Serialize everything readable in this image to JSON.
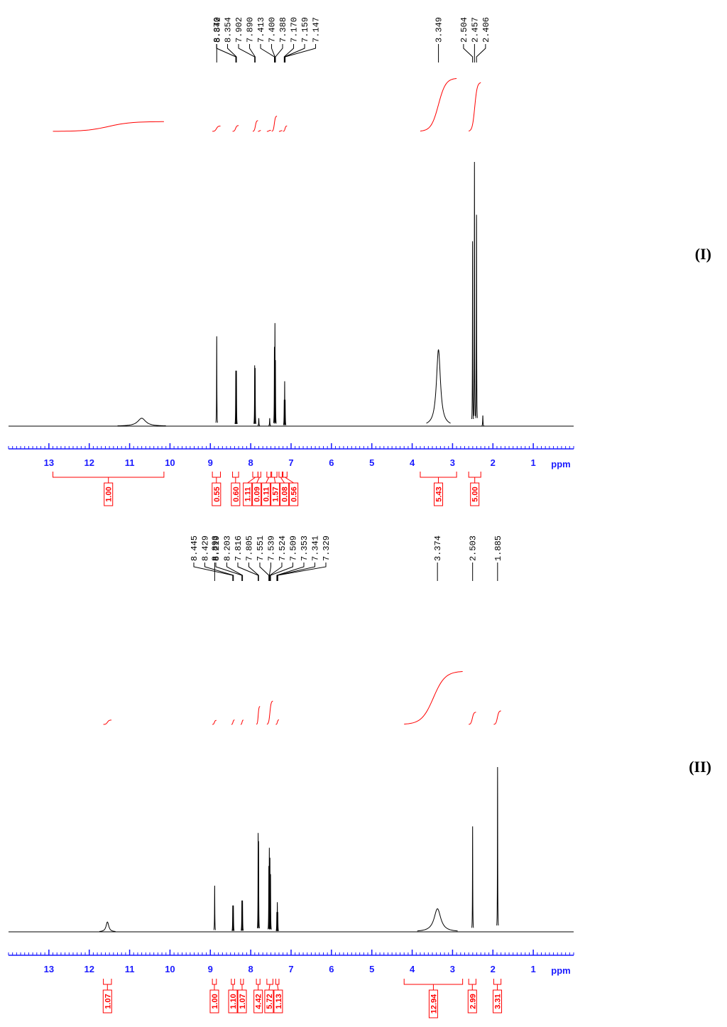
{
  "chart_data": [
    {
      "type": "nmr",
      "label": "(I)",
      "xlim": [
        14,
        0
      ],
      "xticks": [
        13,
        12,
        11,
        10,
        9,
        8,
        7,
        6,
        5,
        4,
        3,
        2,
        1
      ],
      "xlabel": "ppm",
      "minor_step": 0.1,
      "color": "#000000",
      "integral_color": "#ff0000",
      "axis_color": "#1a1aff",
      "peak_labels": [
        8.842,
        {
          "value": 8.37,
          "label": "8.370"
        },
        8.354,
        7.902,
        {
          "value": 7.89,
          "label": "7.890"
        },
        7.413,
        {
          "value": 7.4,
          "label": "7.400"
        },
        7.388,
        {
          "value": 7.17,
          "label": "7.170"
        },
        7.159,
        7.147,
        3.349,
        2.504,
        2.457,
        2.406
      ],
      "peaks": {
        "x": [
          10.7,
          8.842,
          8.37,
          8.354,
          7.902,
          7.89,
          7.8,
          7.53,
          7.413,
          7.4,
          7.388,
          7.17,
          7.159,
          7.147,
          3.349,
          2.504,
          2.457,
          2.406,
          2.25
        ],
        "heights": [
          3,
          34,
          21,
          21,
          23,
          22,
          3,
          3,
          30,
          39,
          25,
          10,
          17,
          10,
          29,
          70,
          100,
          80,
          4
        ],
        "widths": [
          0.12,
          0.004,
          0.004,
          0.004,
          0.004,
          0.004,
          0.005,
          0.005,
          0.004,
          0.004,
          0.004,
          0.004,
          0.004,
          0.004,
          0.06,
          0.004,
          0.004,
          0.004,
          0.005
        ]
      },
      "integrals": {
        "ranges": [
          [
            12.9,
            10.15
          ],
          [
            8.95,
            8.75
          ],
          [
            8.45,
            8.3
          ],
          [
            7.95,
            7.82
          ],
          [
            7.82,
            7.75
          ],
          [
            7.6,
            7.5
          ],
          [
            7.48,
            7.35
          ],
          [
            7.3,
            7.22
          ],
          [
            7.2,
            7.1
          ],
          [
            3.8,
            2.9
          ],
          [
            2.6,
            2.3
          ]
        ],
        "values": [
          1,
          0.55,
          0.6,
          1.11,
          0.09,
          0.11,
          1.57,
          0.08,
          0.56,
          5.43,
          5
        ],
        "value_labels": [
          "1.00",
          "0.55",
          "0.60",
          "1.11",
          "0.09",
          "0.11",
          "1.57",
          "0.08",
          "0.56",
          "5.43",
          "5.00"
        ]
      }
    },
    {
      "type": "nmr",
      "label": "(II)",
      "xlim": [
        14,
        0
      ],
      "xticks": [
        13,
        12,
        11,
        10,
        9,
        8,
        7,
        6,
        5,
        4,
        3,
        2,
        1
      ],
      "xlabel": "ppm",
      "minor_step": 0.1,
      "color": "#000000",
      "integral_color": "#ff0000",
      "axis_color": "#1a1aff",
      "peak_labels": [
        8.893,
        8.445,
        8.429,
        8.219,
        8.203,
        7.816,
        7.805,
        7.551,
        7.539,
        7.524,
        7.509,
        7.353,
        7.341,
        7.329,
        3.374,
        2.503,
        1.885
      ],
      "peaks": {
        "x": [
          11.55,
          8.893,
          8.445,
          8.429,
          8.219,
          8.203,
          7.816,
          7.805,
          7.551,
          7.539,
          7.524,
          7.509,
          7.353,
          7.341,
          7.329,
          3.374,
          2.503,
          1.885
        ],
        "heights": [
          6,
          28,
          16,
          16,
          19,
          19,
          60,
          55,
          40,
          51,
          45,
          35,
          12,
          18,
          12,
          14,
          64,
          100
        ],
        "widths": [
          0.04,
          0.004,
          0.004,
          0.004,
          0.004,
          0.004,
          0.004,
          0.004,
          0.004,
          0.004,
          0.004,
          0.004,
          0.004,
          0.004,
          0.004,
          0.1,
          0.004,
          0.004
        ]
      },
      "integrals": {
        "ranges": [
          [
            11.65,
            11.45
          ],
          [
            8.95,
            8.85
          ],
          [
            8.48,
            8.4
          ],
          [
            8.25,
            8.18
          ],
          [
            7.86,
            7.77
          ],
          [
            7.6,
            7.45
          ],
          [
            7.38,
            7.3
          ],
          [
            4.2,
            2.75
          ],
          [
            2.6,
            2.42
          ],
          [
            1.98,
            1.8
          ]
        ],
        "values": [
          1.07,
          1,
          1.1,
          1.07,
          4.42,
          5.72,
          1.13,
          12.94,
          2.99,
          3.31
        ],
        "value_labels": [
          "1.07",
          "1.00",
          "1.10",
          "1.07",
          "4.42",
          "5.72",
          "1.13",
          "12.94",
          "2.99",
          "3.31"
        ]
      }
    }
  ]
}
